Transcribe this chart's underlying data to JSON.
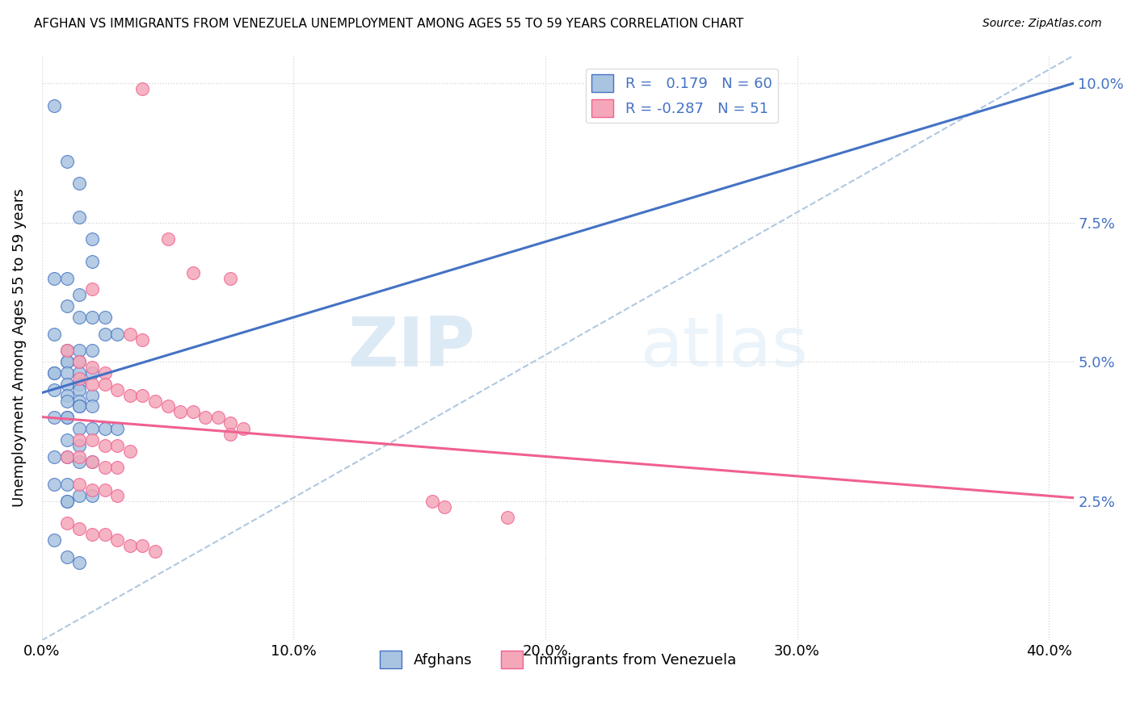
{
  "title": "AFGHAN VS IMMIGRANTS FROM VENEZUELA UNEMPLOYMENT AMONG AGES 55 TO 59 YEARS CORRELATION CHART",
  "source": "Source: ZipAtlas.com",
  "ylabel": "Unemployment Among Ages 55 to 59 years",
  "afghan_color": "#a8c4e0",
  "venezuela_color": "#f4a7b9",
  "afghan_line_color": "#4472c4",
  "venezuela_line_color": "#f06090",
  "diagonal_line_color": "#b0c8e0",
  "r_afghan": 0.179,
  "n_afghan": 60,
  "r_venezuela": -0.287,
  "n_venezuela": 51,
  "legend_label_afghan": "Afghans",
  "legend_label_venezuela": "Immigrants from Venezuela",
  "watermark_zip": "ZIP",
  "watermark_atlas": "atlas",
  "afghan_scatter_x": [
    0.005,
    0.01,
    0.015,
    0.015,
    0.02,
    0.02,
    0.005,
    0.01,
    0.015,
    0.01,
    0.015,
    0.02,
    0.025,
    0.025,
    0.03,
    0.005,
    0.01,
    0.015,
    0.02,
    0.01,
    0.01,
    0.015,
    0.005,
    0.005,
    0.01,
    0.015,
    0.02,
    0.01,
    0.015,
    0.005,
    0.015,
    0.01,
    0.02,
    0.015,
    0.01,
    0.02,
    0.015,
    0.01,
    0.005,
    0.01,
    0.015,
    0.02,
    0.025,
    0.03,
    0.01,
    0.015,
    0.005,
    0.01,
    0.015,
    0.02,
    0.005,
    0.01,
    0.015,
    0.02,
    0.01,
    0.005,
    0.01,
    0.015,
    0.01,
    0.015
  ],
  "afghan_scatter_y": [
    0.096,
    0.086,
    0.082,
    0.076,
    0.072,
    0.068,
    0.065,
    0.065,
    0.062,
    0.06,
    0.058,
    0.058,
    0.058,
    0.055,
    0.055,
    0.055,
    0.052,
    0.052,
    0.052,
    0.05,
    0.05,
    0.05,
    0.048,
    0.048,
    0.048,
    0.048,
    0.048,
    0.046,
    0.046,
    0.045,
    0.045,
    0.044,
    0.044,
    0.043,
    0.043,
    0.042,
    0.042,
    0.04,
    0.04,
    0.04,
    0.038,
    0.038,
    0.038,
    0.038,
    0.036,
    0.035,
    0.033,
    0.033,
    0.032,
    0.032,
    0.028,
    0.028,
    0.026,
    0.026,
    0.025,
    0.018,
    0.015,
    0.014,
    0.025,
    0.042
  ],
  "venezuela_scatter_x": [
    0.04,
    0.05,
    0.06,
    0.075,
    0.02,
    0.035,
    0.04,
    0.01,
    0.015,
    0.02,
    0.025,
    0.015,
    0.02,
    0.025,
    0.03,
    0.035,
    0.04,
    0.045,
    0.05,
    0.055,
    0.06,
    0.065,
    0.07,
    0.075,
    0.08,
    0.075,
    0.015,
    0.02,
    0.025,
    0.03,
    0.035,
    0.01,
    0.015,
    0.02,
    0.025,
    0.03,
    0.015,
    0.02,
    0.025,
    0.03,
    0.155,
    0.16,
    0.01,
    0.015,
    0.02,
    0.025,
    0.03,
    0.035,
    0.04,
    0.045,
    0.185
  ],
  "venezuela_scatter_y": [
    0.099,
    0.072,
    0.066,
    0.065,
    0.063,
    0.055,
    0.054,
    0.052,
    0.05,
    0.049,
    0.048,
    0.047,
    0.046,
    0.046,
    0.045,
    0.044,
    0.044,
    0.043,
    0.042,
    0.041,
    0.041,
    0.04,
    0.04,
    0.039,
    0.038,
    0.037,
    0.036,
    0.036,
    0.035,
    0.035,
    0.034,
    0.033,
    0.033,
    0.032,
    0.031,
    0.031,
    0.028,
    0.027,
    0.027,
    0.026,
    0.025,
    0.024,
    0.021,
    0.02,
    0.019,
    0.019,
    0.018,
    0.017,
    0.017,
    0.016,
    0.022
  ],
  "xlim": [
    0.0,
    0.41
  ],
  "ylim": [
    0.0,
    0.105
  ],
  "xticks": [
    0.0,
    0.1,
    0.2,
    0.3,
    0.4
  ],
  "yticks": [
    0.0,
    0.025,
    0.05,
    0.075,
    0.1
  ]
}
